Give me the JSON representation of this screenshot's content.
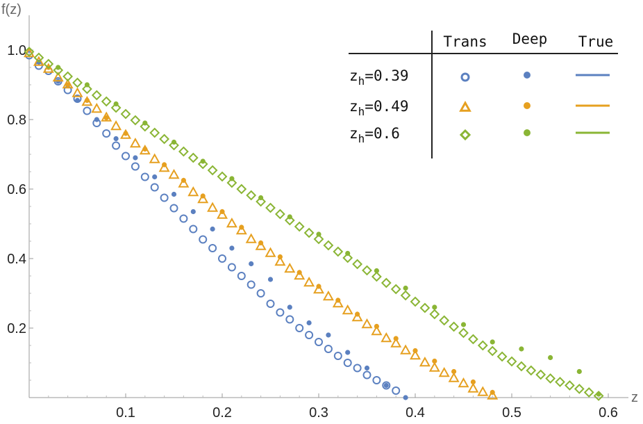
{
  "chart_data": {
    "type": "scatter",
    "xlabel": "z",
    "ylabel": "f(z)",
    "xlim": [
      0,
      0.6
    ],
    "ylim": [
      0,
      1.0
    ],
    "x_ticks": [
      0.1,
      0.2,
      0.3,
      0.4,
      0.5,
      0.6
    ],
    "x_tick_labels": [
      "0.1",
      "0.2",
      "0.3",
      "0.4",
      "0.5",
      "0.6"
    ],
    "y_ticks": [
      0.2,
      0.4,
      0.6,
      0.8,
      1.0
    ],
    "y_tick_labels": [
      "0.2",
      "0.4",
      "0.6",
      "0.8",
      "1.0"
    ],
    "grid": false,
    "legend": {
      "placement": "top-right",
      "columns": [
        "Trans",
        "Deep",
        "True"
      ],
      "rows": [
        {
          "label": "0.39",
          "prefix": "z",
          "subscript": "h",
          "color": "#5b80c0",
          "trans_marker": "circle"
        },
        {
          "label": "0.49",
          "prefix": "z",
          "subscript": "h",
          "color": "#e6a020",
          "trans_marker": "triangle"
        },
        {
          "label": "0.6",
          "prefix": "z",
          "subscript": "h",
          "color": "#8ab535",
          "trans_marker": "diamond"
        }
      ]
    },
    "series": [
      {
        "zh": 0.39,
        "color": "#5b80c0",
        "trans_x": [
          0.0,
          0.01,
          0.02,
          0.03,
          0.04,
          0.05,
          0.06,
          0.07,
          0.08,
          0.09,
          0.1,
          0.11,
          0.12,
          0.13,
          0.14,
          0.15,
          0.16,
          0.17,
          0.18,
          0.19,
          0.2,
          0.21,
          0.22,
          0.23,
          0.24,
          0.25,
          0.26,
          0.27,
          0.28,
          0.29,
          0.3,
          0.31,
          0.32,
          0.33,
          0.34,
          0.35,
          0.36,
          0.37,
          0.38
        ],
        "trans_y": [
          0.985,
          0.955,
          0.94,
          0.91,
          0.885,
          0.86,
          0.825,
          0.79,
          0.76,
          0.725,
          0.695,
          0.665,
          0.635,
          0.605,
          0.575,
          0.545,
          0.515,
          0.485,
          0.455,
          0.43,
          0.4,
          0.375,
          0.35,
          0.325,
          0.3,
          0.27,
          0.245,
          0.225,
          0.2,
          0.18,
          0.16,
          0.14,
          0.12,
          0.1,
          0.085,
          0.065,
          0.05,
          0.035,
          0.02
        ],
        "deep_x": [
          0.01,
          0.03,
          0.05,
          0.07,
          0.09,
          0.11,
          0.13,
          0.15,
          0.17,
          0.19,
          0.21,
          0.23,
          0.25,
          0.27,
          0.29,
          0.31,
          0.33,
          0.35,
          0.37,
          0.39
        ],
        "deep_y": [
          0.965,
          0.91,
          0.855,
          0.8,
          0.745,
          0.69,
          0.635,
          0.585,
          0.535,
          0.485,
          0.43,
          0.385,
          0.34,
          0.26,
          0.215,
          0.18,
          0.13,
          0.085,
          0.035,
          0.0
        ]
      },
      {
        "zh": 0.49,
        "color": "#e6a020",
        "trans_x": [
          0.0,
          0.01,
          0.02,
          0.03,
          0.04,
          0.05,
          0.06,
          0.07,
          0.08,
          0.09,
          0.1,
          0.11,
          0.12,
          0.13,
          0.14,
          0.15,
          0.16,
          0.17,
          0.18,
          0.19,
          0.2,
          0.21,
          0.22,
          0.23,
          0.24,
          0.25,
          0.26,
          0.27,
          0.28,
          0.29,
          0.3,
          0.31,
          0.32,
          0.33,
          0.34,
          0.35,
          0.36,
          0.37,
          0.38,
          0.39,
          0.4,
          0.41,
          0.42,
          0.43,
          0.44,
          0.45,
          0.46,
          0.47,
          0.48
        ],
        "trans_y": [
          0.99,
          0.965,
          0.945,
          0.92,
          0.9,
          0.875,
          0.85,
          0.83,
          0.805,
          0.78,
          0.755,
          0.73,
          0.71,
          0.685,
          0.66,
          0.64,
          0.615,
          0.59,
          0.57,
          0.545,
          0.525,
          0.5,
          0.48,
          0.455,
          0.435,
          0.415,
          0.39,
          0.37,
          0.35,
          0.33,
          0.31,
          0.29,
          0.27,
          0.25,
          0.23,
          0.21,
          0.19,
          0.17,
          0.155,
          0.135,
          0.12,
          0.1,
          0.085,
          0.07,
          0.055,
          0.04,
          0.025,
          0.015,
          0.005
        ],
        "deep_x": [
          0.02,
          0.04,
          0.06,
          0.08,
          0.1,
          0.12,
          0.14,
          0.16,
          0.18,
          0.2,
          0.22,
          0.24,
          0.26,
          0.28,
          0.3,
          0.32,
          0.34,
          0.36,
          0.38,
          0.4,
          0.42,
          0.44,
          0.46,
          0.48
        ],
        "deep_y": [
          0.95,
          0.9,
          0.855,
          0.805,
          0.76,
          0.715,
          0.67,
          0.625,
          0.58,
          0.535,
          0.49,
          0.445,
          0.405,
          0.36,
          0.32,
          0.28,
          0.24,
          0.205,
          0.17,
          0.135,
          0.105,
          0.075,
          0.045,
          0.015
        ]
      },
      {
        "zh": 0.6,
        "color": "#8ab535",
        "trans_x": [
          0.0,
          0.01,
          0.02,
          0.03,
          0.04,
          0.05,
          0.06,
          0.07,
          0.08,
          0.09,
          0.1,
          0.11,
          0.12,
          0.13,
          0.14,
          0.15,
          0.16,
          0.17,
          0.18,
          0.19,
          0.2,
          0.21,
          0.22,
          0.23,
          0.24,
          0.25,
          0.26,
          0.27,
          0.28,
          0.29,
          0.3,
          0.31,
          0.32,
          0.33,
          0.34,
          0.35,
          0.36,
          0.37,
          0.38,
          0.39,
          0.4,
          0.41,
          0.42,
          0.43,
          0.44,
          0.45,
          0.46,
          0.47,
          0.48,
          0.49,
          0.5,
          0.51,
          0.52,
          0.53,
          0.54,
          0.55,
          0.56,
          0.57,
          0.58,
          0.59
        ],
        "trans_y": [
          0.995,
          0.978,
          0.96,
          0.942,
          0.924,
          0.906,
          0.888,
          0.87,
          0.852,
          0.834,
          0.816,
          0.798,
          0.78,
          0.762,
          0.744,
          0.726,
          0.708,
          0.69,
          0.672,
          0.654,
          0.636,
          0.618,
          0.6,
          0.582,
          0.564,
          0.546,
          0.528,
          0.51,
          0.492,
          0.474,
          0.456,
          0.438,
          0.42,
          0.402,
          0.384,
          0.366,
          0.348,
          0.33,
          0.312,
          0.294,
          0.276,
          0.258,
          0.24,
          0.222,
          0.204,
          0.186,
          0.168,
          0.15,
          0.134,
          0.118,
          0.104,
          0.09,
          0.078,
          0.066,
          0.055,
          0.045,
          0.035,
          0.025,
          0.015,
          0.005
        ],
        "deep_x": [
          0.03,
          0.06,
          0.09,
          0.12,
          0.15,
          0.18,
          0.21,
          0.24,
          0.27,
          0.3,
          0.33,
          0.36,
          0.39,
          0.42,
          0.45,
          0.48,
          0.51,
          0.54,
          0.57,
          0.59
        ],
        "deep_y": [
          0.95,
          0.9,
          0.845,
          0.79,
          0.735,
          0.68,
          0.63,
          0.575,
          0.52,
          0.47,
          0.415,
          0.365,
          0.315,
          0.26,
          0.21,
          0.16,
          0.14,
          0.115,
          0.075,
          0.01
        ]
      }
    ]
  }
}
